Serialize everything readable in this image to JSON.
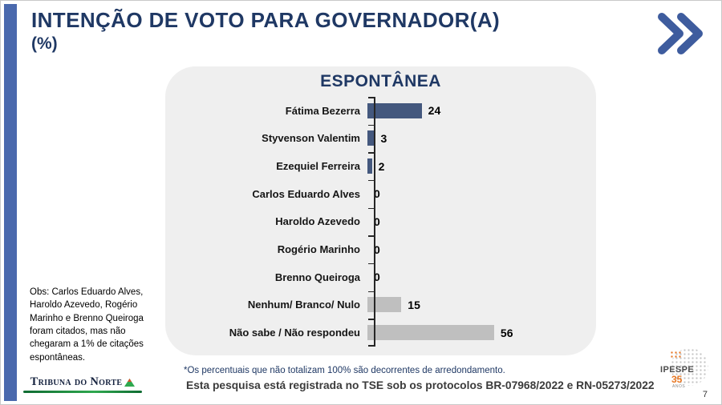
{
  "page": {
    "title": "INTENÇÃO DE VOTO PARA GOVERNADOR(A)",
    "subtitle": "(%)",
    "page_number": "7"
  },
  "chart_data": {
    "type": "bar",
    "orientation": "horizontal",
    "title": "ESPONTÂNEA",
    "categories": [
      "Fátima Bezerra",
      "Styvenson Valentim",
      "Ezequiel Ferreira",
      "Carlos Eduardo Alves",
      "Haroldo Azevedo",
      "Rogério Marinho",
      "Brenno Queiroga",
      "Nenhum/ Branco/ Nulo",
      "Não sabe / Não respondeu"
    ],
    "values": [
      24,
      3,
      2,
      0,
      0,
      0,
      0,
      15,
      56
    ],
    "bar_colors": [
      "#44587e",
      "#44587e",
      "#44587e",
      "#44587e",
      "#44587e",
      "#44587e",
      "#44587e",
      "#bfbfbf",
      "#bfbfbf"
    ],
    "xlim": [
      0,
      60
    ],
    "value_labels_shown": true,
    "grid": false,
    "legend": false
  },
  "notes": {
    "obs": "Obs: Carlos Eduardo Alves, Haroldo Azevedo, Rogério Marinho e Brenno Queiroga foram citados, mas não chegaram a 1% de citações espontâneas.",
    "footnote": "*Os percentuais que não totalizam 100% são decorrentes de arredondamento.",
    "tse": "Esta pesquisa está registrada no TSE sob os protocolos BR-07968/2022 e RN-05273/2022"
  },
  "branding": {
    "newspaper": "Tribuna do Norte",
    "institute": "IPESPE",
    "institute_badge": "35",
    "institute_badge_sub": "ANOS"
  },
  "colors": {
    "title_navy": "#1f3864",
    "bar_blue": "#44587e",
    "bar_gray": "#bfbfbf",
    "sidebar_blue": "#4a69ad",
    "chevron_blue": "#3e5c9e",
    "card_bg": "#efefef"
  },
  "icons": {
    "chevron": "double-chevron-right",
    "tribuna_mark": "mountain-triangle",
    "ipespe_mark": "dotted-globe"
  }
}
